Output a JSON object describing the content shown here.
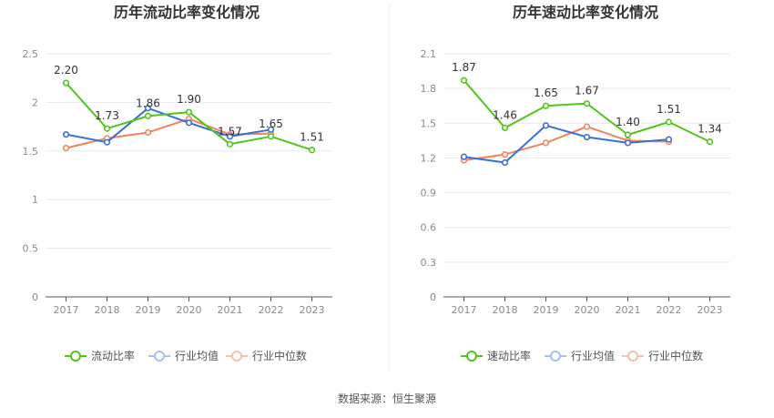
{
  "source": "数据来源：恒生聚源",
  "colors": {
    "main": "#52c41a",
    "avg": "#3a6fd8",
    "median": "#f0845c",
    "grid": "#e8e8f0",
    "axis": "#555555"
  },
  "chart_data": [
    {
      "type": "line",
      "title": "历年流动比率变化情况",
      "categories": [
        "2017",
        "2018",
        "2019",
        "2020",
        "2021",
        "2022",
        "2023"
      ],
      "ylim": [
        0,
        2.5
      ],
      "yticks": [
        "0",
        "0.5",
        "1",
        "1.5",
        "2",
        "2.5"
      ],
      "series": [
        {
          "name": "流动比率",
          "values": [
            2.2,
            1.73,
            1.86,
            1.9,
            1.57,
            1.65,
            1.51
          ],
          "labels": [
            "2.20",
            "1.73",
            "1.86",
            "1.90",
            "1.57",
            "1.65",
            "1.51"
          ]
        },
        {
          "name": "行业均值",
          "values": [
            1.67,
            1.59,
            1.94,
            1.79,
            1.65,
            1.72,
            null
          ]
        },
        {
          "name": "行业中位数",
          "values": [
            1.53,
            1.63,
            1.69,
            1.83,
            1.67,
            1.68,
            null
          ]
        }
      ],
      "grid": true,
      "legend": "bottom"
    },
    {
      "type": "line",
      "title": "历年速动比率变化情况",
      "categories": [
        "2017",
        "2018",
        "2019",
        "2020",
        "2021",
        "2022",
        "2023"
      ],
      "ylim": [
        0,
        2.1
      ],
      "yticks": [
        "0",
        "0.3",
        "0.6",
        "0.9",
        "1.2",
        "1.5",
        "1.8",
        "2.1"
      ],
      "series": [
        {
          "name": "速动比率",
          "values": [
            1.87,
            1.46,
            1.65,
            1.67,
            1.4,
            1.51,
            1.34
          ],
          "labels": [
            "1.87",
            "1.46",
            "1.65",
            "1.67",
            "1.40",
            "1.51",
            "1.34"
          ]
        },
        {
          "name": "行业均值",
          "values": [
            1.21,
            1.16,
            1.48,
            1.38,
            1.33,
            1.36,
            null
          ]
        },
        {
          "name": "行业中位数",
          "values": [
            1.18,
            1.23,
            1.33,
            1.47,
            1.35,
            1.34,
            null
          ]
        }
      ],
      "grid": true,
      "legend": "bottom"
    }
  ]
}
